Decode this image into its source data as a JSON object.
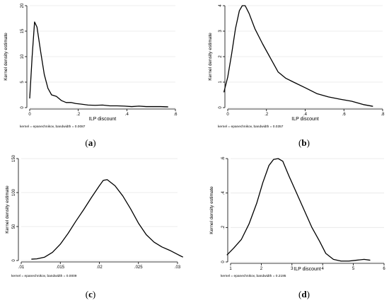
{
  "captions": [
    {
      "open": "(",
      "letter": "a",
      "close": ")"
    },
    {
      "open": "(",
      "letter": "b",
      "close": ")"
    },
    {
      "open": "(",
      "letter": "c",
      "close": ")"
    },
    {
      "open": "(",
      "letter": "d",
      "close": ")"
    }
  ],
  "chart_data": [
    {
      "type": "line",
      "title": "",
      "xlabel": "ILP discount",
      "ylabel": "Kernel density estimate",
      "note": "kernel = epanechnikov, bandwidth = 0.0087",
      "xlim": [
        0,
        0.6
      ],
      "ylim": [
        0,
        20
      ],
      "xticks": [
        0,
        0.2,
        0.4,
        0.6
      ],
      "xtick_labels": [
        "0",
        ".2",
        ".4",
        ".6"
      ],
      "yticks": [
        0,
        5,
        10,
        15,
        20
      ],
      "ytick_labels": [
        "0",
        "5",
        "10",
        "15",
        "20"
      ],
      "grid": true,
      "x": [
        0,
        0.01,
        0.02,
        0.03,
        0.045,
        0.06,
        0.075,
        0.09,
        0.11,
        0.13,
        0.15,
        0.17,
        0.19,
        0.21,
        0.24,
        0.27,
        0.3,
        0.33,
        0.36,
        0.39,
        0.42,
        0.45,
        0.48,
        0.51,
        0.54,
        0.57
      ],
      "y": [
        1.8,
        10,
        16.8,
        15.8,
        11,
        6.5,
        3.8,
        2.5,
        2.2,
        1.4,
        1.0,
        1.0,
        0.8,
        0.7,
        0.5,
        0.45,
        0.5,
        0.35,
        0.35,
        0.3,
        0.2,
        0.3,
        0.2,
        0.2,
        0.2,
        0.15
      ]
    },
    {
      "type": "line",
      "title": "",
      "xlabel": "ILP discount",
      "ylabel": "Kernel density estimate",
      "note": "kernel = epanechnikov, bandwidth = 0.0357",
      "xlim": [
        0,
        0.8
      ],
      "ylim": [
        0,
        4
      ],
      "xticks": [
        0,
        0.2,
        0.4,
        0.6,
        0.8
      ],
      "xtick_labels": [
        "0",
        ".2",
        ".4",
        ".6",
        ".8"
      ],
      "yticks": [
        0,
        1,
        2,
        3,
        4
      ],
      "ytick_labels": [
        "0",
        "1",
        "2",
        "3",
        "4"
      ],
      "grid": true,
      "x": [
        -0.02,
        0,
        0.02,
        0.04,
        0.06,
        0.075,
        0.09,
        0.11,
        0.14,
        0.18,
        0.22,
        0.26,
        0.3,
        0.34,
        0.4,
        0.46,
        0.52,
        0.58,
        0.64,
        0.7,
        0.75
      ],
      "y": [
        0.6,
        1.2,
        2.1,
        3.1,
        3.8,
        4.0,
        4.0,
        3.7,
        3.1,
        2.5,
        1.95,
        1.4,
        1.15,
        1.0,
        0.78,
        0.55,
        0.42,
        0.33,
        0.25,
        0.12,
        0.05
      ]
    },
    {
      "type": "line",
      "title": "",
      "xlabel": "",
      "ylabel": "Kernel density estimate",
      "note": "kernel = epanechnikov, bandwidth = 0.0009",
      "xlim": [
        0.01,
        0.03
      ],
      "ylim": [
        0,
        150
      ],
      "xticks": [
        0.01,
        0.015,
        0.02,
        0.025,
        0.03
      ],
      "xtick_labels": [
        ".01",
        ".015",
        ".02",
        ".025",
        ".03"
      ],
      "yticks": [
        0,
        50,
        100,
        150
      ],
      "ytick_labels": [
        "0",
        "50",
        "100",
        "150"
      ],
      "grid": true,
      "x": [
        0.0113,
        0.012,
        0.013,
        0.014,
        0.015,
        0.016,
        0.017,
        0.018,
        0.019,
        0.02,
        0.0205,
        0.021,
        0.022,
        0.023,
        0.024,
        0.025,
        0.026,
        0.027,
        0.028,
        0.029,
        0.03,
        0.0307
      ],
      "y": [
        2,
        2.5,
        5,
        12,
        24,
        40,
        58,
        75,
        93,
        110,
        118,
        119,
        110,
        95,
        76,
        55,
        38,
        27,
        20,
        15,
        9,
        5
      ]
    },
    {
      "type": "line",
      "title": "",
      "xlabel": "ILP discount",
      "ylabel": "Kernel density estimate",
      "note": "kernel = epanechnikov, bandwidth = 0.2195",
      "xlim": [
        1,
        6
      ],
      "ylim": [
        0,
        0.6
      ],
      "xticks": [
        1,
        2,
        3,
        4,
        5,
        6
      ],
      "xtick_labels": [
        "1",
        "2",
        "3",
        "4",
        "5",
        "6"
      ],
      "yticks": [
        0,
        0.2,
        0.4,
        0.6
      ],
      "ytick_labels": [
        "0",
        ".2",
        ".4",
        ".6"
      ],
      "grid": true,
      "x": [
        0.88,
        1.1,
        1.35,
        1.6,
        1.85,
        2.05,
        2.25,
        2.4,
        2.55,
        2.7,
        2.9,
        3.15,
        3.4,
        3.65,
        3.9,
        4.1,
        4.35,
        4.6,
        4.85,
        5.1,
        5.35,
        5.55
      ],
      "y": [
        0.04,
        0.08,
        0.13,
        0.22,
        0.34,
        0.46,
        0.56,
        0.595,
        0.6,
        0.585,
        0.5,
        0.4,
        0.3,
        0.2,
        0.12,
        0.05,
        0.015,
        0.005,
        0.005,
        0.01,
        0.015,
        0.01
      ]
    }
  ]
}
